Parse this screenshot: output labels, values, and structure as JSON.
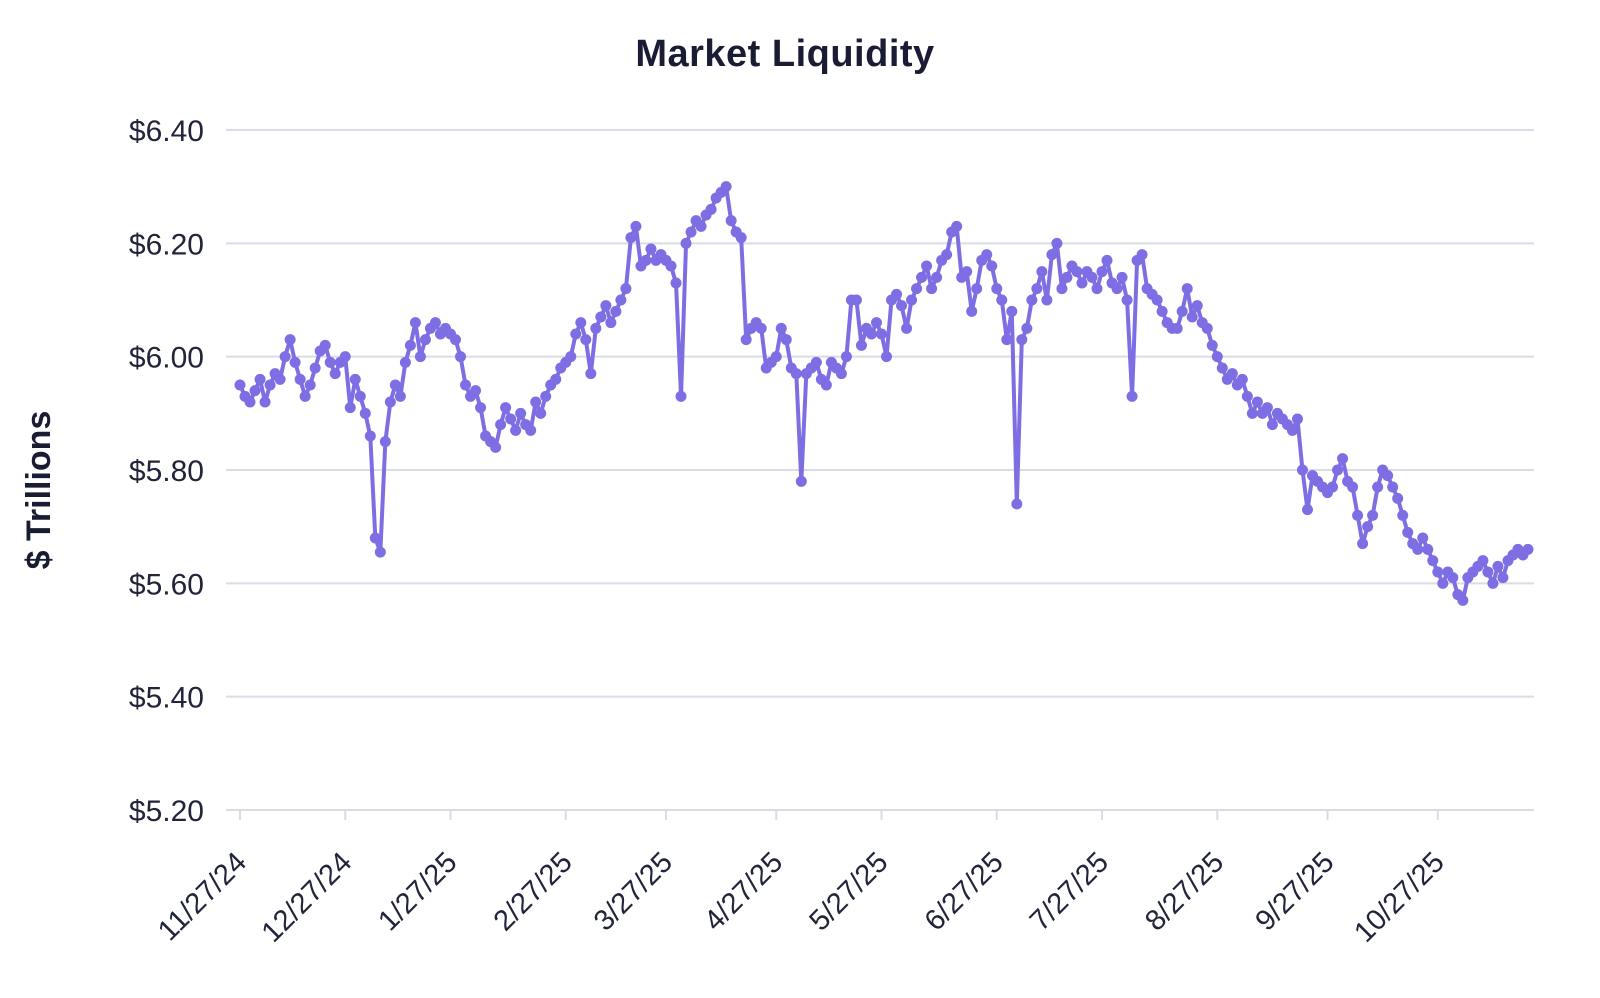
{
  "page": {
    "background_color": "#ffffff"
  },
  "chart_data": {
    "type": "line",
    "title": "Market Liquidity",
    "xlabel": "",
    "ylabel": "$ Trillions",
    "legend_position": "none",
    "grid": "horizontal",
    "marker": "circle",
    "line_color": "#7d6ee3",
    "text_color": "#1a1c33",
    "tick_text_color": "#21243a",
    "grid_color": "#d8dce5",
    "ylim": [
      5.2,
      6.4
    ],
    "y_tick_labels": [
      "$6.40",
      "$6.20",
      "$6.00",
      "$5.80",
      "$5.60",
      "$5.40",
      "$5.20"
    ],
    "y_tick_values": [
      6.4,
      6.2,
      6.0,
      5.8,
      5.6,
      5.4,
      5.2
    ],
    "x_tick_labels": [
      "11/27/24",
      "12/27/24",
      "1/27/25",
      "2/27/25",
      "3/27/25",
      "4/27/25",
      "5/27/25",
      "6/27/25",
      "7/27/25",
      "8/27/25",
      "9/27/25",
      "10/27/25"
    ],
    "x_tick_indices": [
      0,
      21,
      42,
      65,
      85,
      107,
      128,
      151,
      172,
      195,
      217,
      239
    ],
    "values": [
      5.95,
      5.93,
      5.92,
      5.94,
      5.96,
      5.92,
      5.95,
      5.97,
      5.96,
      6.0,
      6.03,
      5.99,
      5.96,
      5.93,
      5.95,
      5.98,
      6.01,
      6.02,
      5.99,
      5.97,
      5.99,
      6.0,
      5.91,
      5.96,
      5.93,
      5.9,
      5.86,
      5.68,
      5.655,
      5.85,
      5.92,
      5.95,
      5.93,
      5.99,
      6.02,
      6.06,
      6.0,
      6.03,
      6.05,
      6.06,
      6.04,
      6.05,
      6.04,
      6.03,
      6.0,
      5.95,
      5.93,
      5.94,
      5.91,
      5.86,
      5.85,
      5.84,
      5.88,
      5.91,
      5.89,
      5.87,
      5.9,
      5.88,
      5.87,
      5.92,
      5.9,
      5.93,
      5.95,
      5.96,
      5.98,
      5.99,
      6.0,
      6.04,
      6.06,
      6.03,
      5.97,
      6.05,
      6.07,
      6.09,
      6.06,
      6.08,
      6.1,
      6.12,
      6.21,
      6.23,
      6.16,
      6.17,
      6.19,
      6.17,
      6.18,
      6.17,
      6.16,
      6.13,
      5.93,
      6.2,
      6.22,
      6.24,
      6.23,
      6.25,
      6.26,
      6.28,
      6.29,
      6.3,
      6.24,
      6.22,
      6.21,
      6.03,
      6.05,
      6.06,
      6.05,
      5.98,
      5.99,
      6.0,
      6.05,
      6.03,
      5.98,
      5.97,
      5.78,
      5.97,
      5.98,
      5.99,
      5.96,
      5.95,
      5.99,
      5.98,
      5.97,
      6.0,
      6.1,
      6.1,
      6.02,
      6.05,
      6.04,
      6.06,
      6.04,
      6.0,
      6.1,
      6.11,
      6.09,
      6.05,
      6.1,
      6.12,
      6.14,
      6.16,
      6.12,
      6.14,
      6.17,
      6.18,
      6.22,
      6.23,
      6.14,
      6.15,
      6.08,
      6.12,
      6.17,
      6.18,
      6.16,
      6.12,
      6.1,
      6.03,
      6.08,
      5.74,
      6.03,
      6.05,
      6.1,
      6.12,
      6.15,
      6.1,
      6.18,
      6.2,
      6.12,
      6.14,
      6.16,
      6.15,
      6.13,
      6.15,
      6.14,
      6.12,
      6.15,
      6.17,
      6.13,
      6.12,
      6.14,
      6.1,
      5.93,
      6.17,
      6.18,
      6.12,
      6.11,
      6.1,
      6.08,
      6.06,
      6.05,
      6.05,
      6.08,
      6.12,
      6.07,
      6.09,
      6.06,
      6.05,
      6.02,
      6.0,
      5.98,
      5.96,
      5.97,
      5.95,
      5.96,
      5.93,
      5.9,
      5.92,
      5.9,
      5.91,
      5.88,
      5.9,
      5.89,
      5.88,
      5.87,
      5.89,
      5.8,
      5.73,
      5.79,
      5.78,
      5.77,
      5.76,
      5.77,
      5.8,
      5.82,
      5.78,
      5.77,
      5.72,
      5.67,
      5.7,
      5.72,
      5.77,
      5.8,
      5.79,
      5.77,
      5.75,
      5.72,
      5.69,
      5.67,
      5.66,
      5.68,
      5.66,
      5.64,
      5.62,
      5.6,
      5.62,
      5.61,
      5.58,
      5.57,
      5.61,
      5.62,
      5.63,
      5.64,
      5.62,
      5.6,
      5.63,
      5.61,
      5.64,
      5.65,
      5.66,
      5.65,
      5.66
    ]
  }
}
